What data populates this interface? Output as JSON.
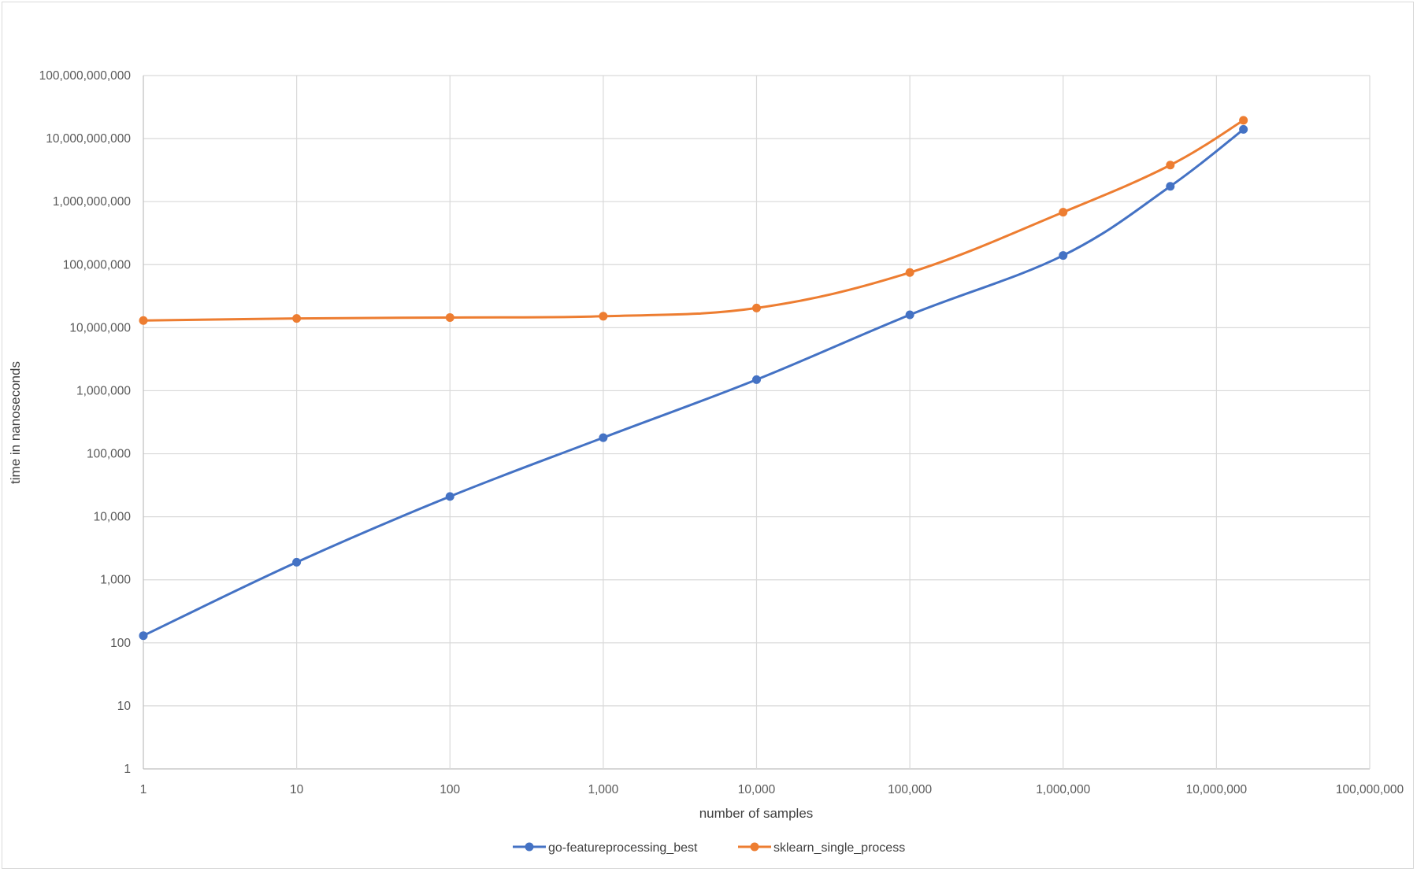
{
  "chart_data": {
    "type": "line",
    "title": "",
    "xlabel": "number of samples",
    "ylabel": "time in nanoseconds",
    "x_scale": "log",
    "y_scale": "log",
    "xlim": [
      1,
      100000000
    ],
    "ylim": [
      1,
      100000000000
    ],
    "x_ticks": [
      1,
      10,
      100,
      1000,
      10000,
      100000,
      1000000,
      10000000,
      100000000
    ],
    "x_tick_labels": [
      "1",
      "10",
      "100",
      "1,000",
      "10,000",
      "100,000",
      "1,000,000",
      "10,000,000",
      "100,000,000"
    ],
    "y_ticks": [
      1,
      10,
      100,
      1000,
      10000,
      100000,
      1000000,
      10000000,
      100000000,
      1000000000,
      10000000000,
      100000000000
    ],
    "y_tick_labels": [
      "1",
      "10",
      "100",
      "1,000",
      "10,000",
      "100,000",
      "1,000,000",
      "10,000,000",
      "100,000,000",
      "1,000,000,000",
      "10,000,000,000",
      "100,000,000,000"
    ],
    "grid": true,
    "legend_position": "bottom",
    "series": [
      {
        "name": "go-featureprocessing_best",
        "color": "#4472C4",
        "x": [
          1,
          10,
          100,
          1000,
          10000,
          100000,
          1000000,
          5000000,
          15000000
        ],
        "y": [
          130,
          1900,
          21000,
          180000,
          1500000,
          16000000,
          140000000,
          1750000000,
          14000000000
        ]
      },
      {
        "name": "sklearn_single_process",
        "color": "#ED7D31",
        "x": [
          1,
          10,
          100,
          1000,
          10000,
          100000,
          1000000,
          5000000,
          15000000
        ],
        "y": [
          13000000,
          14000000,
          14500000,
          15200000,
          20500000,
          75000000,
          680000000,
          3800000000,
          19500000000
        ]
      }
    ]
  }
}
